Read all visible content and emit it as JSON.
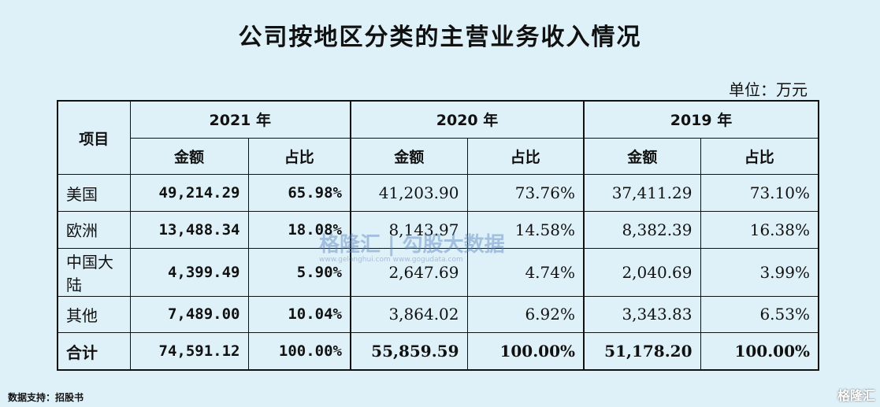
{
  "title": "公司按地区分类的主营业务收入情况",
  "unit": "单位：万元",
  "table": {
    "item_header": "项目",
    "years": [
      "2021 年",
      "2020 年",
      "2019 年"
    ],
    "sub_headers": [
      "金额",
      "占比"
    ],
    "rows": [
      {
        "label": "美国",
        "values": [
          "49,214.29",
          "65.98%",
          "41,203.90",
          "73.76%",
          "37,411.29",
          "73.10%"
        ]
      },
      {
        "label": "欧洲",
        "values": [
          "13,488.34",
          "18.08%",
          "8,143.97",
          "14.58%",
          "8,382.39",
          "16.38%"
        ]
      },
      {
        "label": "中国大陆",
        "values": [
          "4,399.49",
          "5.90%",
          "2,647.69",
          "4.74%",
          "2,040.69",
          "3.99%"
        ]
      },
      {
        "label": "其他",
        "values": [
          "7,489.00",
          "10.04%",
          "3,864.02",
          "6.92%",
          "3,343.83",
          "6.53%"
        ]
      }
    ],
    "total": {
      "label": "合计",
      "values": [
        "74,591.12",
        "100.00%",
        "55,859.59",
        "100.00%",
        "51,178.20",
        "100.00%"
      ]
    }
  },
  "source": "数据支持：招股书",
  "watermark": {
    "main": "格隆汇 | 勾股大数据",
    "sub": "www.gelonghui.com   www.gogudata.com",
    "corner": "格隆汇"
  }
}
